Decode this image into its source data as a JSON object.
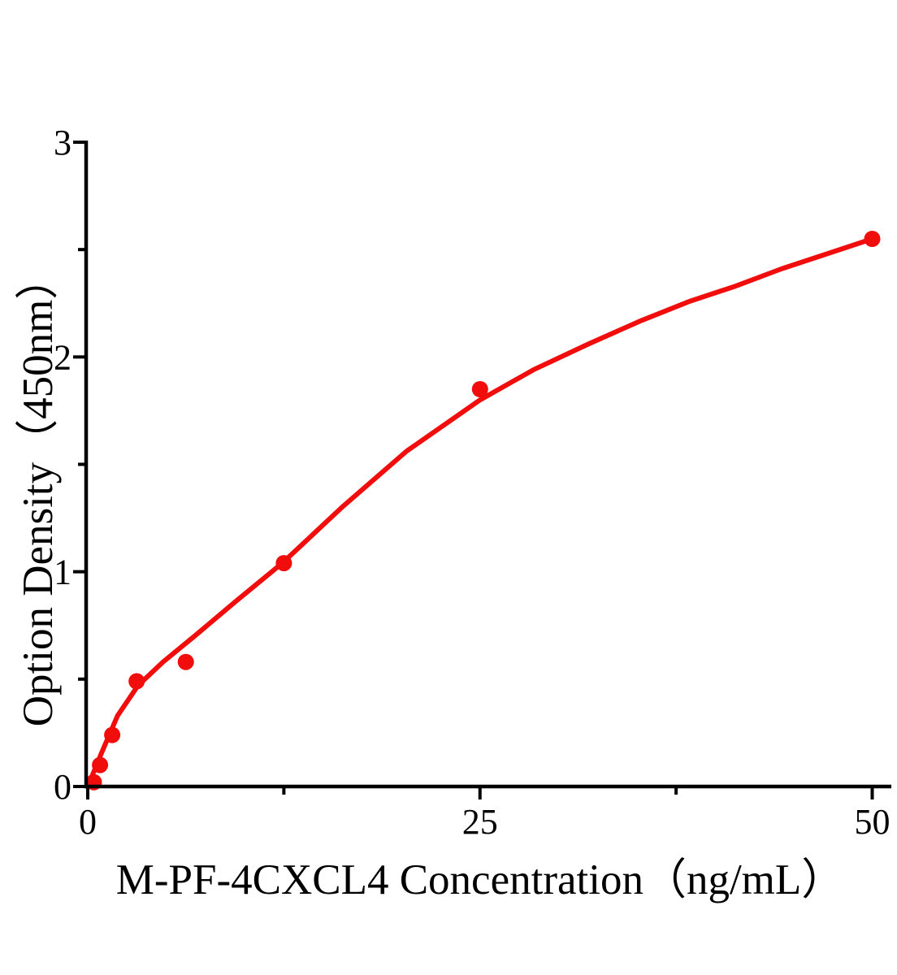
{
  "figure": {
    "background": "#ffffff",
    "axis_color": "#000000",
    "accent_red": "#f20d0d"
  },
  "chart_data": {
    "type": "scatter",
    "title": "",
    "xlabel": "M-PF-4CXCL4 Concentration（ng/mL）",
    "ylabel": "Option Density（450nm）",
    "xlim": [
      0,
      51.2
    ],
    "ylim": [
      0,
      3.01
    ],
    "grid": false,
    "legend_position": "none",
    "x_ticks": [
      0,
      25,
      50
    ],
    "x_minor_ticks": [
      12.5,
      37.5
    ],
    "y_ticks": [
      0,
      1,
      2,
      3
    ],
    "y_minor_ticks": [
      0.5,
      1.5,
      2.5
    ],
    "series": [
      {
        "name": "standard-points",
        "marker": "circle",
        "marker_color": "#f20d0d",
        "x": [
          0.39,
          0.78,
          1.56,
          3.12,
          6.25,
          12.5,
          25,
          50
        ],
        "y": [
          0.02,
          0.1,
          0.24,
          0.49,
          0.58,
          1.04,
          1.85,
          2.55
        ]
      }
    ],
    "fit_curve": {
      "name": "fit-line",
      "color": "#f20d0d",
      "points": [
        [
          0,
          0
        ],
        [
          0.9,
          0.16
        ],
        [
          1.9,
          0.33
        ],
        [
          3.2,
          0.47
        ],
        [
          4.8,
          0.58
        ],
        [
          6.8,
          0.7
        ],
        [
          9.4,
          0.86
        ],
        [
          12.4,
          1.04
        ],
        [
          16.2,
          1.3
        ],
        [
          20.3,
          1.56
        ],
        [
          25.0,
          1.8
        ],
        [
          28.4,
          1.94
        ],
        [
          31.9,
          2.06
        ],
        [
          35.3,
          2.17
        ],
        [
          38.4,
          2.26
        ],
        [
          41.3,
          2.33
        ],
        [
          44.2,
          2.41
        ],
        [
          47.1,
          2.48
        ],
        [
          50,
          2.55
        ]
      ]
    }
  }
}
